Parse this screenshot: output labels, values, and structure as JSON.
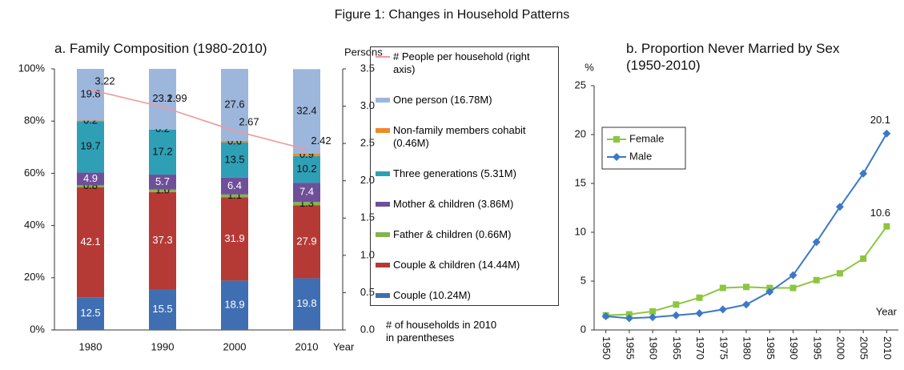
{
  "title": "Figure 1: Changes in Household Patterns",
  "chart_data": [
    {
      "type": "bar",
      "stacked": true,
      "title": "a. Family Composition (1980-2010)",
      "x_label": "Year",
      "y2_label": "Persons",
      "categories": [
        "1980",
        "1990",
        "2000",
        "2010"
      ],
      "series": [
        {
          "name": "Couple (10.24M)",
          "color": "#3f6fb2",
          "values": [
            12.5,
            15.5,
            18.9,
            19.8
          ]
        },
        {
          "name": "Couple & children (14.44M)",
          "color": "#b53a35",
          "values": [
            42.1,
            37.3,
            31.9,
            27.9
          ]
        },
        {
          "name": "Father & children (0.66M)",
          "color": "#86b44a",
          "values": [
            0.8,
            1.0,
            1.1,
            1.3
          ],
          "value_labels": [
            "0.8",
            "1.0",
            "1.1",
            "1.3"
          ]
        },
        {
          "name": "Mother & children (3.86M)",
          "color": "#6f4f9a",
          "values": [
            4.9,
            5.7,
            6.4,
            7.4
          ]
        },
        {
          "name": "Three generations (5.31M)",
          "color": "#2f9fb6",
          "values": [
            19.7,
            17.2,
            13.5,
            10.2
          ]
        },
        {
          "name": "Non-family members cohabit (0.46M)",
          "color": "#ee8a2a",
          "values": [
            0.2,
            0.2,
            0.6,
            0.9
          ]
        },
        {
          "name": "One person (16.78M)",
          "color": "#9db6dc",
          "values": [
            19.8,
            23.1,
            27.6,
            32.4
          ]
        },
        {
          "name": "# People per household (right axis)",
          "type": "line",
          "axis": "y2",
          "color": "#ee9a9a",
          "values": [
            3.22,
            2.99,
            2.67,
            2.42
          ]
        }
      ],
      "ylim": [
        0,
        100
      ],
      "yticks": [
        {
          "value": 0,
          "label": "0%"
        },
        {
          "value": 20,
          "label": "20%"
        },
        {
          "value": 40,
          "label": "40%"
        },
        {
          "value": 60,
          "label": "60%"
        },
        {
          "value": 80,
          "label": "80%"
        },
        {
          "value": 100,
          "label": "100%"
        }
      ],
      "y2lim": [
        0,
        3.5
      ],
      "y2ticks": [
        {
          "value": 0,
          "label": "0.0"
        },
        0.5,
        {
          "value": 1,
          "label": "1.0"
        },
        1.5,
        {
          "value": 2,
          "label": "2.0"
        },
        2.5,
        {
          "value": 3,
          "label": "3.0"
        },
        3.5
      ],
      "note": "# of households in 2010 in parentheses"
    },
    {
      "type": "line",
      "title": "b. Proportion Never Married by Sex (1950-2010)",
      "x_label": "Year",
      "y_label": "%",
      "x": [
        1950,
        1955,
        1960,
        1965,
        1970,
        1975,
        1980,
        1985,
        1990,
        1995,
        2000,
        2005,
        2010
      ],
      "series": [
        {
          "name": "Female",
          "color": "#8cc63f",
          "marker": "square",
          "values": [
            1.5,
            1.6,
            1.9,
            2.6,
            3.3,
            4.3,
            4.4,
            4.3,
            4.3,
            5.1,
            5.8,
            7.3,
            10.6
          ]
        },
        {
          "name": "Male",
          "color": "#3c78c8",
          "marker": "diamond",
          "values": [
            1.4,
            1.2,
            1.3,
            1.5,
            1.7,
            2.1,
            2.6,
            3.9,
            5.6,
            9.0,
            12.6,
            16.0,
            20.1
          ]
        }
      ],
      "xlim": [
        1947.5,
        2012.5
      ],
      "xticks": [
        1950,
        1955,
        1960,
        1965,
        1970,
        1975,
        1980,
        1985,
        1990,
        1995,
        2000,
        2005,
        2010
      ],
      "ylim": [
        0,
        25
      ],
      "yticks": [
        0,
        5,
        10,
        15,
        20,
        25
      ],
      "legend": "upper left"
    }
  ]
}
